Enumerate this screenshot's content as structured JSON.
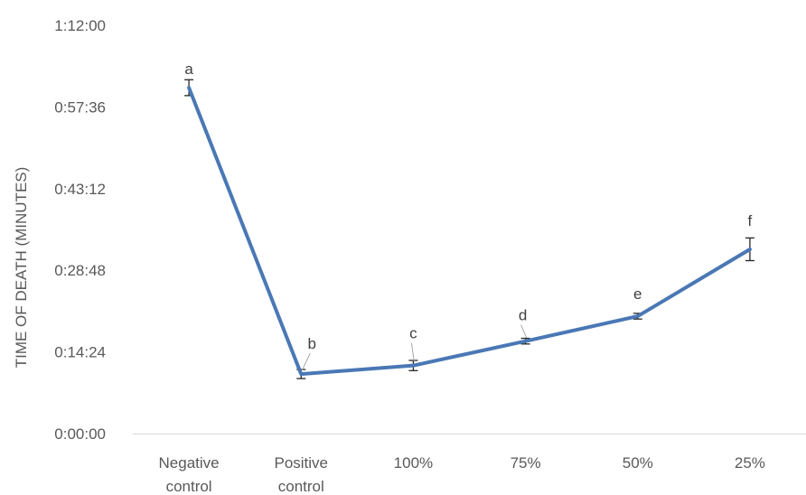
{
  "chart_data": {
    "type": "line",
    "ylabel": "TIME OF DEATH (MINUTES)",
    "xlabel": "",
    "categories": [
      [
        "Negative",
        "control"
      ],
      [
        "Positive",
        "control"
      ],
      [
        "100%"
      ],
      [
        "75%"
      ],
      [
        "50%"
      ],
      [
        "25%"
      ]
    ],
    "y_ticks": [
      "0:00:00",
      "0:14:24",
      "0:28:48",
      "0:43:12",
      "0:57:36",
      "1:12:00"
    ],
    "y_tick_minutes": [
      0,
      14.4,
      28.8,
      43.2,
      57.6,
      72
    ],
    "ylim_minutes": [
      0,
      72
    ],
    "grid": false,
    "legend": "none",
    "series": [
      {
        "values_minutes": [
          61.0,
          10.5,
          12.0,
          16.3,
          20.7,
          32.5
        ],
        "errors_minutes": [
          1.4,
          0.8,
          0.9,
          0.5,
          0.5,
          2.0
        ],
        "labels": [
          "a",
          "b",
          "c",
          "d",
          "e",
          "f"
        ],
        "color": "#4a78b5"
      }
    ]
  }
}
